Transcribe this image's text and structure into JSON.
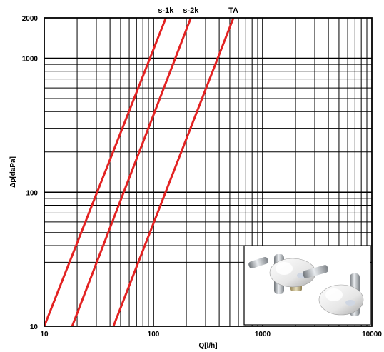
{
  "chart_data": {
    "type": "line",
    "x_scale": "log",
    "y_scale": "log",
    "xlim": [
      10,
      10000
    ],
    "ylim": [
      10,
      2000
    ],
    "xlabel": "Q[l/h]",
    "ylabel": "Δp[daPa]",
    "x_ticks": [
      {
        "value": 10,
        "label": "10"
      },
      {
        "value": 100,
        "label": "100"
      },
      {
        "value": 1000,
        "label": "1000"
      },
      {
        "value": 10000,
        "label": "10000"
      }
    ],
    "y_ticks": [
      {
        "value": 10,
        "label": "10"
      },
      {
        "value": 100,
        "label": "100"
      },
      {
        "value": 1000,
        "label": "1000"
      },
      {
        "value": 2000,
        "label": "2000"
      }
    ],
    "grid": true,
    "line_color": "#e32222",
    "series": [
      {
        "name": "s-1k",
        "points": [
          [
            10,
            10
          ],
          [
            130,
            2000
          ]
        ]
      },
      {
        "name": "s-2k",
        "points": [
          [
            18,
            10
          ],
          [
            220,
            2000
          ]
        ]
      },
      {
        "name": "TA",
        "points": [
          [
            43,
            10
          ],
          [
            540,
            2000
          ]
        ]
      }
    ]
  },
  "inset": {
    "icon": "radiator-valve-photo-icon"
  }
}
